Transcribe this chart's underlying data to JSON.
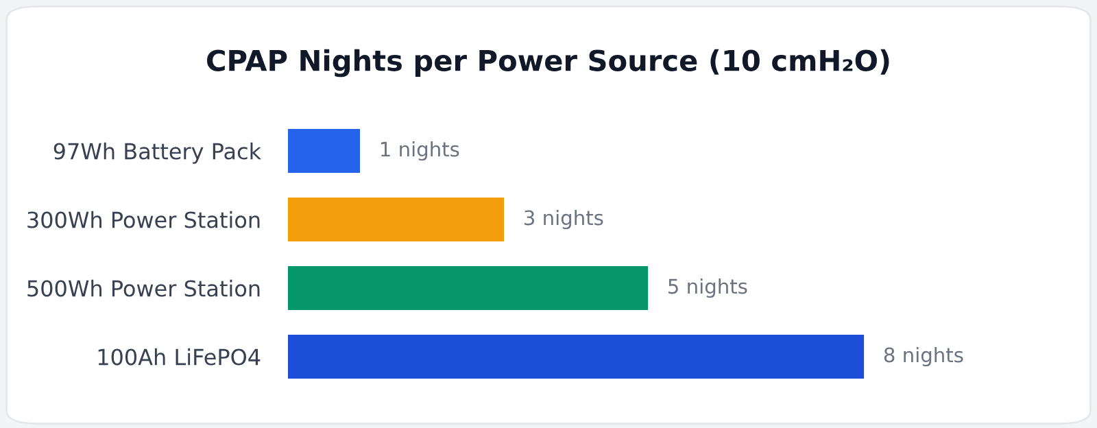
{
  "chart_data": {
    "type": "bar",
    "orientation": "horizontal",
    "title": "CPAP Nights per Power Source (10 cmH₂O)",
    "categories": [
      "97Wh Battery Pack",
      "300Wh Power Station",
      "500Wh Power Station",
      "100Ah LiFePO4"
    ],
    "values": [
      1,
      3,
      5,
      8
    ],
    "colors": [
      "#2563eb",
      "#f59e0b",
      "#059669",
      "#1d4ed8"
    ],
    "value_labels": [
      "1 nights",
      "3 nights",
      "5 nights",
      "8 nights"
    ],
    "grid": false,
    "legend": false
  }
}
